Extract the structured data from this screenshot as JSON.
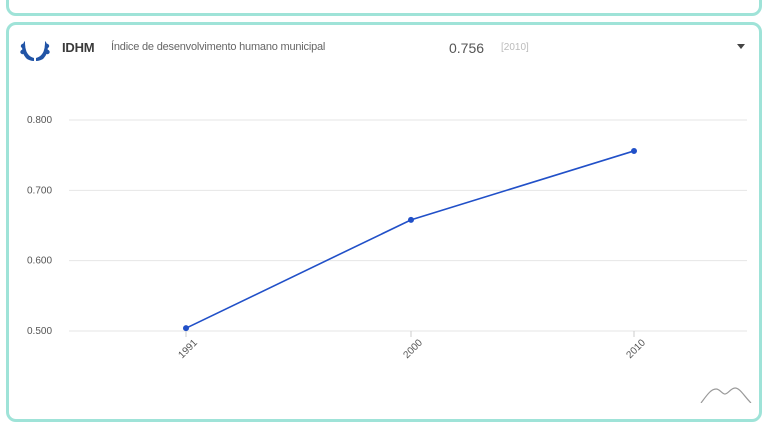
{
  "header": {
    "abbr": "IDHM",
    "full_name": "Índice de desenvolvimento humano municipal",
    "value": "0.756",
    "year": "[2010]"
  },
  "colors": {
    "accent_border": "#9fe3d8",
    "logo": "#2154a6",
    "line": "#2150c8"
  },
  "icons": {
    "logo": "laurel-wreath-icon",
    "dropdown": "caret-down-icon",
    "sparkline": "mountain-sparkline-icon"
  },
  "chart_data": {
    "type": "line",
    "categories": [
      "1991",
      "2000",
      "2010"
    ],
    "series": [
      {
        "values": [
          0.504,
          0.658,
          0.756
        ]
      }
    ],
    "y_ticks": [
      "0.800",
      "0.700",
      "0.600",
      "0.500"
    ],
    "ylim": [
      0.5,
      0.8
    ],
    "grid": true,
    "title": "",
    "xlabel": "",
    "ylabel": ""
  }
}
